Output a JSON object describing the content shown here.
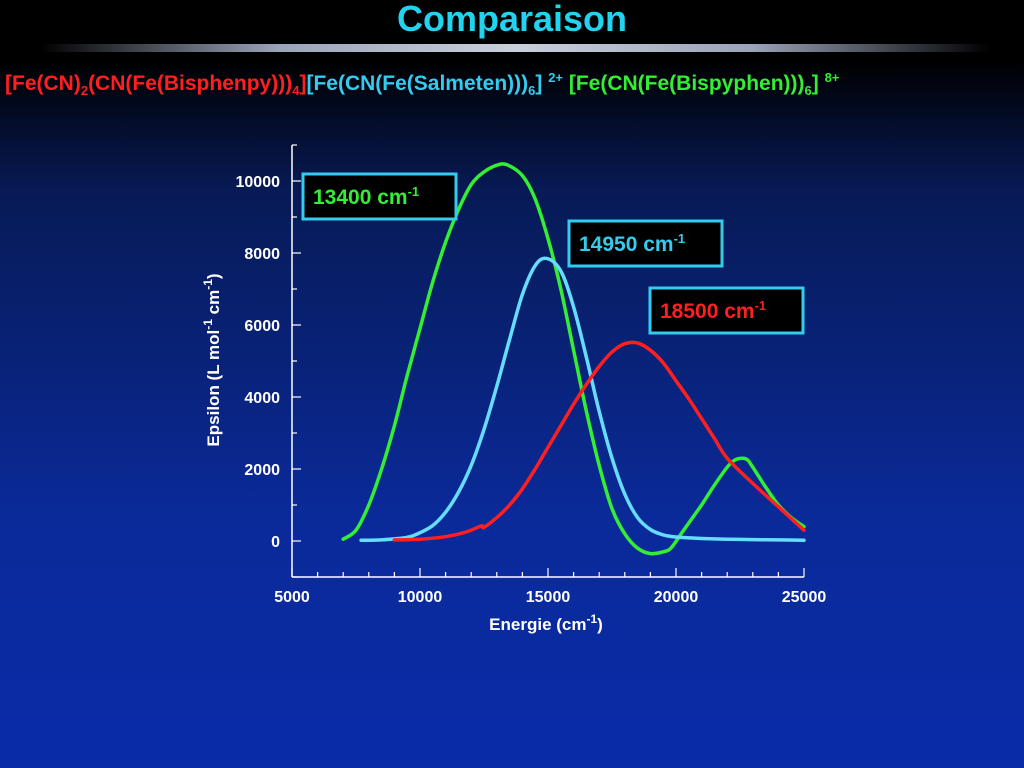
{
  "slide": {
    "title": "Comparaison",
    "formulas": [
      {
        "color": "#ff1f1f",
        "parts": [
          [
            "t",
            "[Fe(CN)"
          ],
          [
            "sub",
            "2"
          ],
          [
            "t",
            "(CN(Fe(Bisphenpy)))"
          ],
          [
            "sub",
            "4"
          ],
          [
            "t",
            "]"
          ]
        ]
      },
      {
        "color": "#33ccee",
        "parts": [
          [
            "t",
            "[Fe(CN(Fe(Salmeten)))"
          ],
          [
            "sub",
            "6"
          ],
          [
            "t",
            "] "
          ],
          [
            "sup",
            "2+"
          ]
        ]
      },
      {
        "color": "#33ee33",
        "parts": [
          [
            "t",
            "[Fe(CN(Fe(Bispyphen)))"
          ],
          [
            "sub",
            "6"
          ],
          [
            "t",
            "] "
          ],
          [
            "sup",
            "8+"
          ]
        ]
      }
    ]
  },
  "chart_data": {
    "type": "line",
    "xlabel": "Energie (cm",
    "xlabel_sup": "-1",
    "xlabel_tail": ")",
    "ylabel": "Epsilon (L mol",
    "ylabel_sup1": "-1",
    "ylabel_mid": " cm",
    "ylabel_sup2": "-1",
    "ylabel_tail": ")",
    "xlim": [
      5000,
      25000
    ],
    "ylim": [
      -1000,
      11000
    ],
    "xticks": [
      5000,
      10000,
      15000,
      20000,
      25000
    ],
    "yticks": [
      0,
      2000,
      4000,
      6000,
      8000,
      10000
    ],
    "series": [
      {
        "color": "#33ee33",
        "x": [
          7000,
          7500,
          8000,
          8500,
          9000,
          9500,
          10000,
          10500,
          11000,
          11500,
          12000,
          12500,
          13000,
          13400,
          14000,
          14500,
          15000,
          15500,
          16000,
          16500,
          17000,
          17500,
          18000,
          18500,
          19000,
          19500,
          19800,
          20200,
          20500,
          21000,
          21500,
          22000,
          22300,
          22600,
          22800,
          23000,
          23500,
          24000,
          24500,
          25000
        ],
        "y": [
          50,
          300,
          1000,
          2000,
          3200,
          4600,
          5900,
          7200,
          8300,
          9200,
          9900,
          10250,
          10440,
          10450,
          10150,
          9500,
          8400,
          7000,
          5300,
          3600,
          2100,
          900,
          200,
          -200,
          -350,
          -300,
          -200,
          200,
          500,
          1000,
          1550,
          2050,
          2250,
          2300,
          2250,
          2050,
          1500,
          1000,
          650,
          400
        ]
      },
      {
        "color": "#66ddff",
        "x": [
          7700,
          8500,
          9500,
          10000,
          10500,
          11000,
          11500,
          12000,
          12500,
          13000,
          13500,
          14000,
          14500,
          14950,
          15500,
          16000,
          16500,
          17000,
          17500,
          18000,
          18500,
          19000,
          19500,
          20000,
          21000,
          22000,
          23000,
          24000,
          25000
        ],
        "y": [
          20,
          30,
          100,
          230,
          430,
          800,
          1350,
          2100,
          3100,
          4300,
          5600,
          6850,
          7650,
          7850,
          7500,
          6500,
          5100,
          3600,
          2300,
          1300,
          650,
          320,
          170,
          110,
          70,
          50,
          40,
          30,
          20
        ]
      },
      {
        "color": "#ff1f1f",
        "x": [
          9000,
          10000,
          11000,
          11800,
          12400,
          12500,
          13000,
          13500,
          14000,
          14500,
          15000,
          15500,
          16000,
          16500,
          17000,
          17500,
          18000,
          18500,
          19000,
          19500,
          20000,
          20500,
          21000,
          21500,
          22000,
          23000,
          24000,
          25000
        ],
        "y": [
          30,
          50,
          120,
          250,
          420,
          380,
          650,
          1000,
          1450,
          2000,
          2600,
          3200,
          3800,
          4350,
          4850,
          5250,
          5480,
          5500,
          5300,
          4950,
          4450,
          3950,
          3400,
          2850,
          2300,
          1600,
          950,
          300
        ]
      }
    ],
    "annotations": [
      {
        "value": "13400",
        "unit": "cm",
        "sup": "-1",
        "color": "#33ee33"
      },
      {
        "value": "14950",
        "unit": "cm",
        "sup": "-1",
        "color": "#33ccee"
      },
      {
        "value": "18500",
        "unit": "cm",
        "sup": "-1",
        "color": "#ff1f1f"
      }
    ],
    "annotation_border": "#33ccee",
    "annotation_fill": "#000000"
  }
}
